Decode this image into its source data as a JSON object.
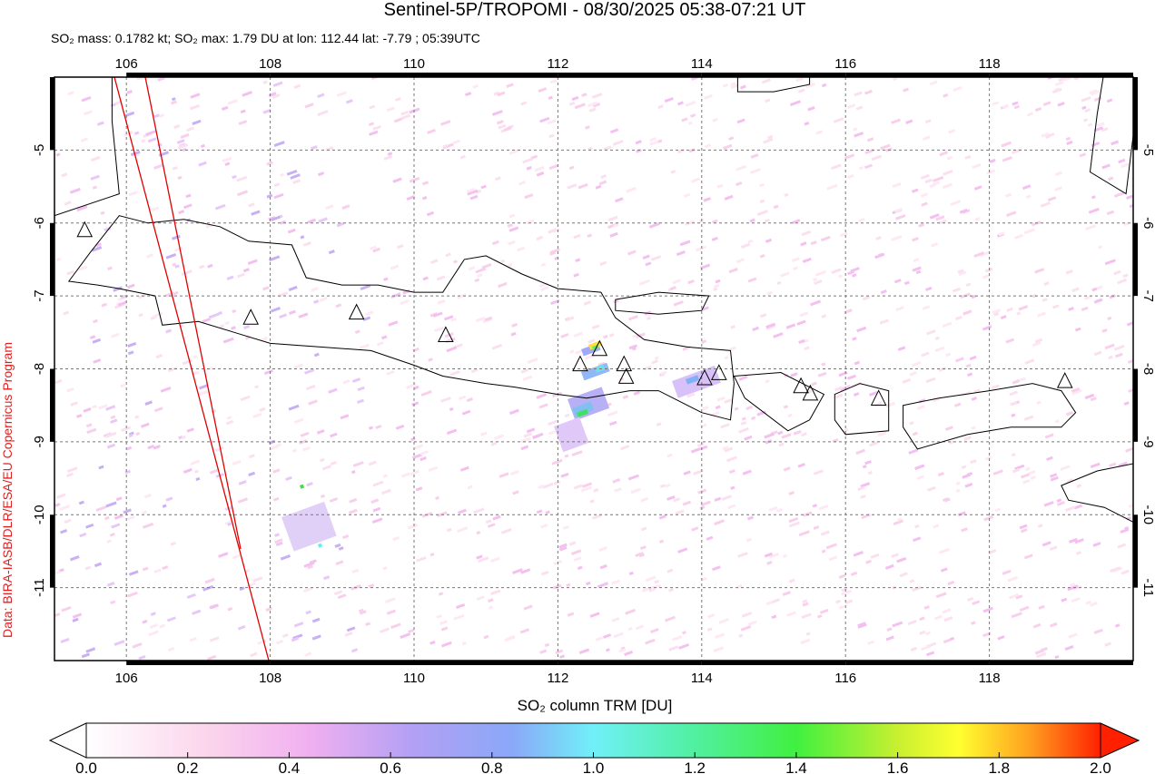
{
  "title": "Sentinel-5P/TROPOMI - 08/30/2025 05:38-07:21 UT",
  "subtitle": "SO₂ mass: 0.1782 kt; SO₂ max: 1.79 DU at lon: 112.44 lat: -7.79 ; 05:39UTC",
  "credit": "Data: BIRA-IASB/DLR/ESA/EU Copernicus Program",
  "map": {
    "xlim": [
      105,
      120
    ],
    "ylim": [
      -12,
      -4
    ],
    "xticks": [
      106,
      108,
      110,
      112,
      114,
      116,
      118
    ],
    "yticks": [
      -11,
      -10,
      -9,
      -8,
      -7,
      -6,
      -5
    ],
    "grid": true
  },
  "colorbar": {
    "label": "SO₂ column TRM [DU]",
    "lim": [
      0,
      2
    ],
    "ticks": [
      {
        "value": 0,
        "label": "0.0"
      },
      {
        "value": 0.2,
        "label": "0.2"
      },
      {
        "value": 0.4,
        "label": "0.4"
      },
      {
        "value": 0.6,
        "label": "0.6"
      },
      {
        "value": 0.8,
        "label": "0.8"
      },
      {
        "value": 1,
        "label": "1.0"
      },
      {
        "value": 1.2,
        "label": "1.2"
      },
      {
        "value": 1.4,
        "label": "1.4"
      },
      {
        "value": 1.6,
        "label": "1.6"
      },
      {
        "value": 1.8,
        "label": "1.8"
      },
      {
        "value": 2,
        "label": "2.0"
      }
    ]
  }
}
